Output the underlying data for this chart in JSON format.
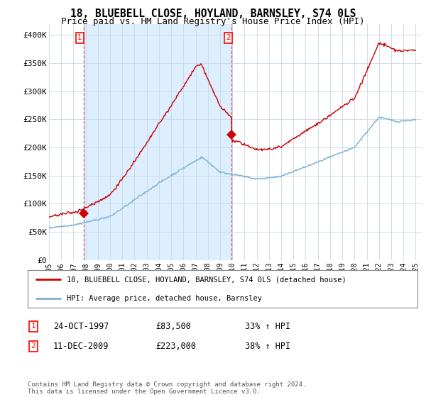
{
  "title": "18, BLUEBELL CLOSE, HOYLAND, BARNSLEY, S74 0LS",
  "subtitle": "Price paid vs. HM Land Registry's House Price Index (HPI)",
  "ylim": [
    0,
    420000
  ],
  "yticks": [
    0,
    50000,
    100000,
    150000,
    200000,
    250000,
    300000,
    350000,
    400000
  ],
  "ytick_labels": [
    "£0",
    "£50K",
    "£100K",
    "£150K",
    "£200K",
    "£250K",
    "£300K",
    "£350K",
    "£400K"
  ],
  "background_color": "#ffffff",
  "grid_color": "#c8d8e8",
  "shade_color": "#ddeeff",
  "sale1_date": 1997.82,
  "sale1_price": 83500,
  "sale1_label": "1",
  "sale2_date": 2009.95,
  "sale2_price": 223000,
  "sale2_label": "2",
  "legend_line1": "18, BLUEBELL CLOSE, HOYLAND, BARNSLEY, S74 0LS (detached house)",
  "legend_line2": "HPI: Average price, detached house, Barnsley",
  "sale1_row": "24-OCT-1997",
  "sale1_price_str": "£83,500",
  "sale1_hpi": "33% ↑ HPI",
  "sale2_row": "11-DEC-2009",
  "sale2_price_str": "£223,000",
  "sale2_hpi": "38% ↑ HPI",
  "footer": "Contains HM Land Registry data © Crown copyright and database right 2024.\nThis data is licensed under the Open Government Licence v3.0.",
  "line_color_red": "#cc0000",
  "line_color_blue": "#7aafd4",
  "title_fontsize": 10.5,
  "subtitle_fontsize": 9,
  "tick_fontsize": 8
}
